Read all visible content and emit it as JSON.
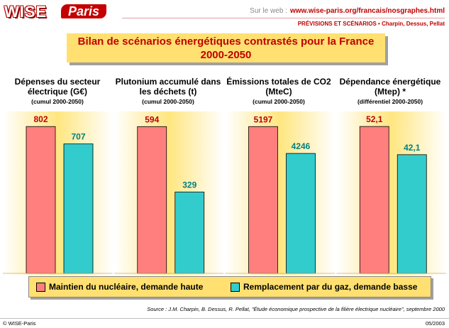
{
  "header": {
    "logo_word": "WISE",
    "logo_city": "Paris",
    "website_prefix": "Sur le web :",
    "website_url": "www.wise-paris.org/francais/nosgraphes.html",
    "section": "PRÉVISIONS ET SCÉNARIOS • Charpin, Dessus, Pellat"
  },
  "title": {
    "line1": "Bilan de scénarios énergétiques contrastés pour la France",
    "line2": "2000-2050"
  },
  "colors": {
    "series1": "#ff7f7f",
    "series2": "#33cccc",
    "series1_label": "#c00000",
    "series2_label": "#008080",
    "title_box": "#ffe070",
    "panel_edge": "#ffffff",
    "panel_center": "#ffe680"
  },
  "chart_data": [
    {
      "type": "bar",
      "title": "Dépenses du secteur électrique (G€)",
      "subtitle": "(cumul 2000-2050)",
      "categories": [
        "Maintien du nucléaire, demande haute",
        "Remplacement par du gaz, demande basse"
      ],
      "values": [
        802,
        707
      ],
      "value_labels": [
        "802",
        "707"
      ],
      "ylim": [
        0,
        830
      ]
    },
    {
      "type": "bar",
      "title": "Plutonium accumulé dans les déchets (t)",
      "subtitle": "(cumul 2000-2050)",
      "categories": [
        "Maintien du nucléaire, demande haute",
        "Remplacement par du gaz, demande basse"
      ],
      "values": [
        594,
        329
      ],
      "value_labels": [
        "594",
        "329"
      ],
      "ylim": [
        0,
        615
      ]
    },
    {
      "type": "bar",
      "title": "Émissions totales de CO2 (MteC)",
      "subtitle": "(cumul 2000-2050)",
      "categories": [
        "Maintien du nucléaire, demande haute",
        "Remplacement par du gaz, demande basse"
      ],
      "values": [
        5197,
        4246
      ],
      "value_labels": [
        "5197",
        "4246"
      ],
      "ylim": [
        0,
        5380
      ]
    },
    {
      "type": "bar",
      "title": "Dépendance énergétique (Mtep) *",
      "subtitle": "(différentiel 2000-2050)",
      "categories": [
        "Maintien du nucléaire, demande haute",
        "Remplacement par du gaz, demande basse"
      ],
      "values": [
        52.1,
        42.1
      ],
      "value_labels": [
        "52,1",
        "42,1"
      ],
      "ylim": [
        0,
        53.9
      ]
    }
  ],
  "legend": {
    "series1": "Maintien du nucléaire, demande haute",
    "series2": "Remplacement par du gaz, demande basse"
  },
  "source": "Source : J.M. Charpin, B. Dessus, R. Pellat, \"Étude économique prospective de la filière électrique nucléaire\", septembre 2000",
  "footer": {
    "copyright": "© WISE-Paris",
    "date": "05/2003"
  }
}
